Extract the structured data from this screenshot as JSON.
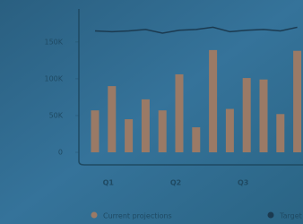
{
  "chart_data": {
    "type": "bar",
    "categories": [
      null,
      "Q1",
      null,
      null,
      null,
      "Q2",
      null,
      null,
      null,
      "Q3",
      null,
      null,
      null
    ],
    "series": [
      {
        "name": "Current projections",
        "type": "bar",
        "color": "#9a7a66",
        "values": [
          57000,
          90000,
          45000,
          72000,
          57000,
          106000,
          34000,
          139000,
          59000,
          101000,
          99000,
          52000,
          138000
        ]
      },
      {
        "name": "Target",
        "type": "line",
        "color": "#1b3a50",
        "values": [
          165000,
          164000,
          165000,
          167000,
          162000,
          166000,
          167000,
          170000,
          164000,
          166000,
          167000,
          165000,
          170000
        ]
      }
    ],
    "ylim": [
      0,
      190000
    ],
    "yticks": [
      {
        "value": 0,
        "label": "0"
      },
      {
        "value": 50000,
        "label": "50K"
      },
      {
        "value": 100000,
        "label": "100K"
      },
      {
        "value": 150000,
        "label": "150K"
      }
    ],
    "legend": "bottom"
  }
}
